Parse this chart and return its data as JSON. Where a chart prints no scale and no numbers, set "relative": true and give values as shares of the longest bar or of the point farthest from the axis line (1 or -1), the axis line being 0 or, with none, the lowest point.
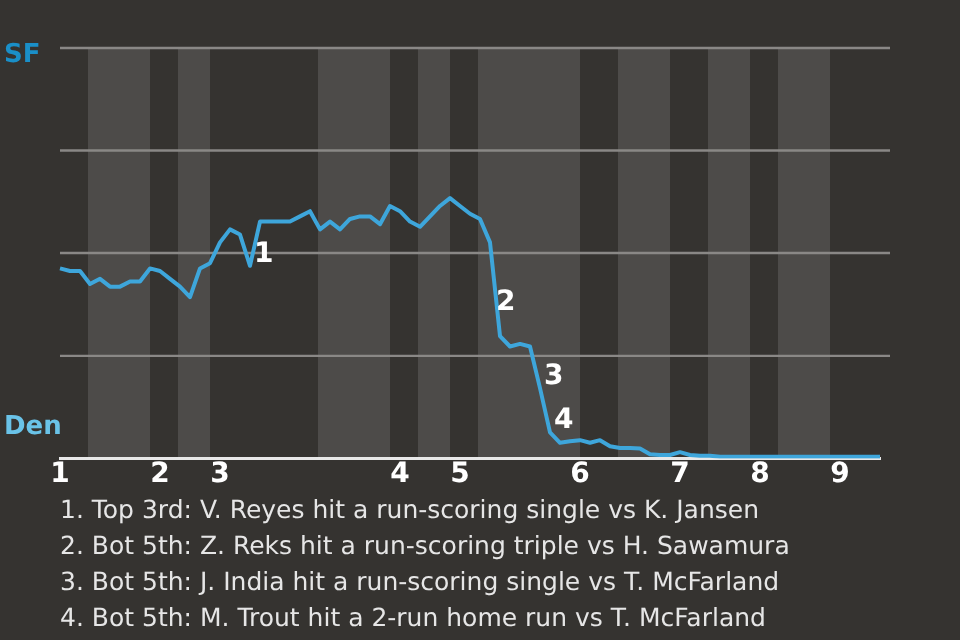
{
  "chart_data": {
    "type": "line",
    "relative": true,
    "categories": [
      "1",
      null,
      null,
      null,
      null,
      null,
      null,
      null,
      null,
      null,
      "2",
      null,
      null,
      null,
      null,
      null,
      "3",
      null,
      null,
      null,
      null,
      null,
      null,
      null,
      null,
      null,
      null,
      null,
      null,
      null,
      null,
      null,
      null,
      null,
      "4",
      null,
      null,
      null,
      null,
      null,
      "5",
      null,
      null,
      null,
      null,
      null,
      null,
      null,
      null,
      null,
      null,
      null,
      "6",
      null,
      null,
      null,
      null,
      null,
      null,
      null,
      null,
      null,
      "7",
      null,
      null,
      null,
      null,
      null,
      null,
      null,
      "8",
      null,
      null,
      null,
      null,
      null,
      null,
      null,
      "9",
      null,
      null,
      null,
      null
    ],
    "series": [
      {
        "color": "#3ea6db",
        "values": [
          0.73,
          0.72,
          0.72,
          0.67,
          0.69,
          0.66,
          0.66,
          0.68,
          0.68,
          0.73,
          0.72,
          0.69,
          0.66,
          0.62,
          0.73,
          0.75,
          0.83,
          0.88,
          0.86,
          0.74,
          0.91,
          0.91,
          0.91,
          0.91,
          0.93,
          0.95,
          0.88,
          0.91,
          0.88,
          0.92,
          0.93,
          0.93,
          0.9,
          0.97,
          0.95,
          0.91,
          0.89,
          0.93,
          0.97,
          1,
          0.97,
          0.94,
          0.92,
          0.83,
          0.47,
          0.43,
          0.44,
          0.43,
          0.27,
          0.1,
          0.06,
          0.066,
          0.07,
          0.06,
          0.07,
          0.047,
          0.04,
          0.04,
          0.038,
          0.016,
          0.013,
          0.013,
          0.024,
          0.013,
          0.01,
          0.01,
          0.006,
          0.006,
          0.006,
          0.006,
          0.006,
          0.006,
          0.006,
          0.006,
          0.006,
          0.006,
          0.006,
          0.006,
          0.006,
          0.006,
          0.006,
          0.006,
          0.006
        ]
      }
    ],
    "ref_lines": [
      {
        "axis": "y",
        "value": 0.394,
        "color": "#8a8886"
      },
      {
        "axis": "y",
        "value": 0.789,
        "color": "#8a8886"
      },
      {
        "axis": "y",
        "value": 1.183,
        "color": "#8a8886"
      },
      {
        "axis": "y",
        "value": 1.577,
        "color": "#8a8886"
      }
    ],
    "grid": false,
    "legend": false,
    "marker": "none",
    "line_style": "solid",
    "annotations": [
      "SF",
      "Den",
      "1",
      "2",
      "3",
      "4",
      "1. Top 3rd: V. Reyes hit a run-scoring single vs K. Jansen",
      "2. Bot 5th: Z. Reks hit a run-scoring triple vs H. Sawamura",
      "3. Bot 5th: J. India hit a run-scoring single vs T. McFarland",
      "4. Bot 5th: M. Trout hit a 2-run home run vs T. McFarland"
    ]
  }
}
